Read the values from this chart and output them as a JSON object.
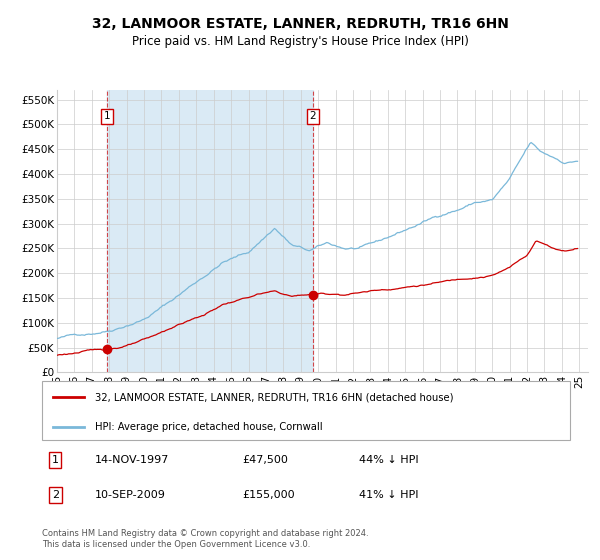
{
  "title": "32, LANMOOR ESTATE, LANNER, REDRUTH, TR16 6HN",
  "subtitle": "Price paid vs. HM Land Registry's House Price Index (HPI)",
  "ylabel_ticks": [
    "£0",
    "£50K",
    "£100K",
    "£150K",
    "£200K",
    "£250K",
    "£300K",
    "£350K",
    "£400K",
    "£450K",
    "£500K",
    "£550K"
  ],
  "ylim": [
    0,
    570000
  ],
  "xlim_start": 1995.0,
  "xlim_end": 2025.5,
  "sale1_x": 1997.87,
  "sale1_y": 47500,
  "sale1_label": "1",
  "sale1_date": "14-NOV-1997",
  "sale1_price": "£47,500",
  "sale1_hpi": "44% ↓ HPI",
  "sale2_x": 2009.7,
  "sale2_y": 155000,
  "sale2_label": "2",
  "sale2_date": "10-SEP-2009",
  "sale2_price": "£155,000",
  "sale2_hpi": "41% ↓ HPI",
  "bg_shade_start": 1997.87,
  "bg_shade_end": 2009.7,
  "legend_line1": "32, LANMOOR ESTATE, LANNER, REDRUTH, TR16 6HN (detached house)",
  "legend_line2": "HPI: Average price, detached house, Cornwall",
  "footnote": "Contains HM Land Registry data © Crown copyright and database right 2024.\nThis data is licensed under the Open Government Licence v3.0.",
  "hpi_color": "#7ab8d9",
  "price_color": "#cc0000",
  "shade_color": "#daeaf5",
  "grid_color": "#cccccc",
  "title_fontsize": 10,
  "subtitle_fontsize": 8.5,
  "tick_fontsize": 7.5
}
